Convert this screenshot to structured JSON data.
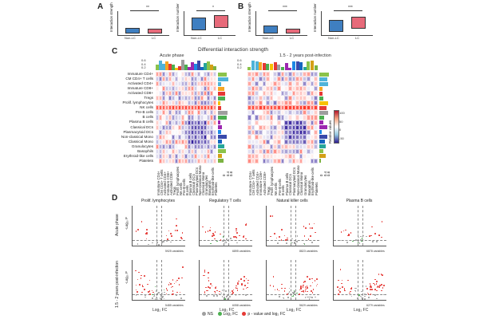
{
  "panel_labels": {
    "a": "A",
    "b": "B",
    "c": "C",
    "d": "D"
  },
  "panel_a": {
    "sig1": "**",
    "sig2": "*",
    "ylabel1": "Interaction strength",
    "ylabel2": "Interaction number",
    "x_non_lc": "Non-LC",
    "x_lc": "LC",
    "color_non_lc": "#3f7fc1",
    "color_lc": "#e76a7a"
  },
  "panel_b": {
    "sig1": "***",
    "sig2": "***",
    "ylabel1": "Interaction strength",
    "ylabel2": "Interaction number",
    "x_non_lc": "Non-LC",
    "x_lc": "LC"
  },
  "panel_c": {
    "title": "Differential interaction strength",
    "left_title": "Acute phase",
    "right_title": "1.5 - 2 years post-infection",
    "top_axis_ticks": [
      "0.6",
      "0.4",
      "0.2"
    ],
    "row_labels": [
      "Immature CD4+",
      "CM CD4+ T cells",
      "Activated CD4+",
      "Immature CD8+",
      "Activated CD8+",
      "Tregs",
      "Prolif. lymphocytes",
      "NK cells",
      "Pre-B cells",
      "B cells",
      "Plasma B cells",
      "Classical DCs",
      "Plasmacytoid DCs",
      "Non-classical Mono",
      "Classical Mono",
      "Granulocytes",
      "Basophils",
      "Erythroid-like cells",
      "Platelets"
    ],
    "col_labels": [
      "Immature CD4+",
      "CM CD4+ T cells",
      "Activated CD4+",
      "Immature CD8+",
      "Activated CD8+",
      "Tregs",
      "Prolif. lymphocytes",
      "NK cells",
      "Pre-B cells",
      "B cells",
      "Plasma B cells",
      "Classical DCs",
      "Plasmacytoid DCs",
      "Non-classical Mono",
      "Classical Mono",
      "Granulocytes",
      "Basophils",
      "Erythroid-like cells",
      "Platelets"
    ],
    "side_ticks": [
      "0",
      "0.4",
      "0.8"
    ],
    "legend_title": "Relative values",
    "legend_ticks": [
      "100",
      "50",
      "0",
      "-50"
    ]
  },
  "panel_d": {
    "col_titles": [
      "Prolif. lymphocytes",
      "Regulatory T cells",
      "Natural killer cells",
      "Plasma B cells"
    ],
    "row_titles": [
      "Acute phase",
      "1.5 - 2 years post-infection"
    ],
    "ylabel": "-Log₁₀ P",
    "xlabel": "Log₂ FC",
    "footers": [
      "5925 variables",
      "6895 variables",
      "8823 variables",
      "6878 variables",
      "5485 variables",
      "6058 variables",
      "5629 variables",
      "6279 variables"
    ],
    "legend": [
      "NS",
      "Log₂ FC",
      "p - value and log₂ FC"
    ],
    "legend_colors": [
      "#9e9e9e",
      "#4caf50",
      "#e53935"
    ]
  }
}
